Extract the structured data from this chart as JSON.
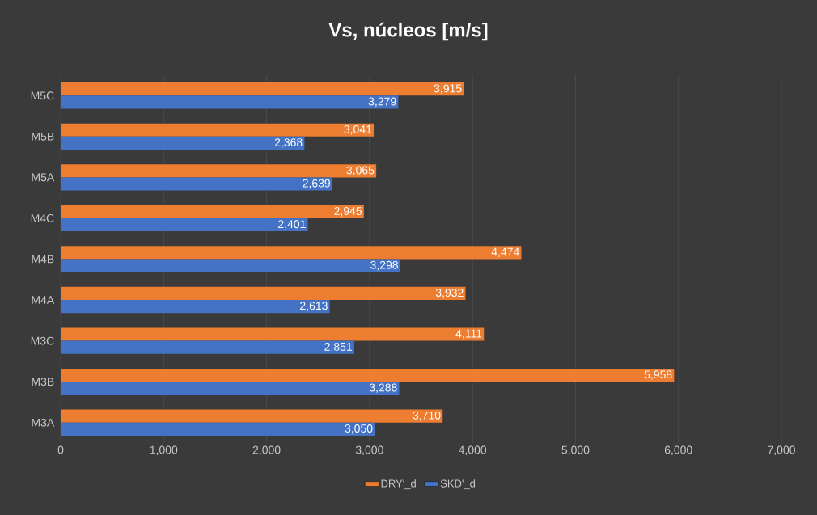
{
  "chart_data": {
    "type": "bar",
    "orientation": "horizontal",
    "title": "Vs, núcleos [m/s]",
    "categories": [
      "M5C",
      "M5B",
      "M5A",
      "M4C",
      "M4B",
      "M4A",
      "M3C",
      "M3B",
      "M3A"
    ],
    "series": [
      {
        "name": "DRY'_d",
        "color": "#ed7d31",
        "values": [
          3915,
          3041,
          3065,
          2945,
          4474,
          3932,
          4111,
          5958,
          3710
        ],
        "value_labels": [
          "3,915",
          "3,041",
          "3,065",
          "2,945",
          "4,474",
          "3,932",
          "4,111",
          "5,958",
          "3,710"
        ]
      },
      {
        "name": "SKD'_d",
        "color": "#4472c4",
        "values": [
          3279,
          2368,
          2639,
          2401,
          3298,
          2613,
          2851,
          3288,
          3050
        ],
        "value_labels": [
          "3,279",
          "2,368",
          "2,639",
          "2,401",
          "3,298",
          "2,613",
          "2,851",
          "3,288",
          "3,050"
        ]
      }
    ],
    "xlim": [
      0,
      7000
    ],
    "xticks": [
      0,
      {
        "value": 1000,
        "label": "1,000"
      },
      {
        "value": 2000,
        "label": "2,000"
      },
      {
        "value": 3000,
        "label": "3,000"
      },
      {
        "value": 4000,
        "label": "4,000"
      },
      {
        "value": 5000,
        "label": "5,000"
      },
      {
        "value": 6000,
        "label": "6,000"
      },
      {
        "value": 7000,
        "label": "7,000"
      }
    ],
    "grid": "x",
    "legend": "bottom"
  }
}
